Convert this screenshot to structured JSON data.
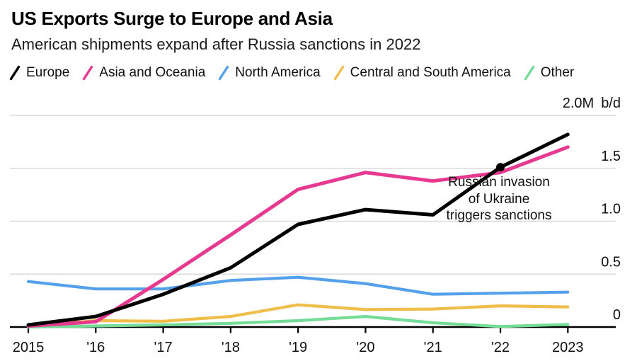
{
  "chart_data": {
    "type": "line",
    "title": "US Exports Surge to Europe and Asia",
    "subtitle": "American shipments expand after Russia sanctions in 2022",
    "unit": "b/d",
    "categories": [
      "2015",
      "'16",
      "'17",
      "'18",
      "'19",
      "'20",
      "'21",
      "'22",
      "2023"
    ],
    "ylim": [
      0,
      2.0
    ],
    "yticks": [
      0,
      0.5,
      1.0,
      1.5,
      2.0
    ],
    "ytick_labels": [
      "0",
      "0.5",
      "1.0",
      "1.5",
      "2.0M"
    ],
    "grid": true,
    "legend_position": "top",
    "series": [
      {
        "name": "Europe",
        "color": "#000000",
        "values": [
          0.02,
          0.1,
          0.31,
          0.56,
          0.97,
          1.11,
          1.06,
          1.51,
          1.82
        ]
      },
      {
        "name": "Asia and Oceania",
        "color": "#e6398f",
        "values": [
          0.01,
          0.05,
          0.45,
          0.87,
          1.3,
          1.46,
          1.38,
          1.46,
          1.7
        ]
      },
      {
        "name": "North America",
        "color": "#55a0ea",
        "values": [
          0.43,
          0.36,
          0.36,
          0.44,
          0.47,
          0.41,
          0.31,
          0.32,
          0.33
        ]
      },
      {
        "name": "Central and South America",
        "color": "#eebd4a",
        "values": [
          0.01,
          0.06,
          0.055,
          0.1,
          0.21,
          0.165,
          0.17,
          0.2,
          0.19
        ]
      },
      {
        "name": "Other",
        "color": "#74dc97",
        "values": [
          0.0,
          0.01,
          0.02,
          0.035,
          0.06,
          0.1,
          0.04,
          0.005,
          0.025
        ]
      }
    ],
    "annotation": {
      "lines": [
        "Russian invasion",
        "of Ukraine",
        "triggers sanctions"
      ],
      "marker": {
        "series": "Europe",
        "category": "'22"
      }
    },
    "colors": {
      "gridline": "#d9d9d9",
      "axis": "#000000",
      "text": "#111111"
    }
  }
}
